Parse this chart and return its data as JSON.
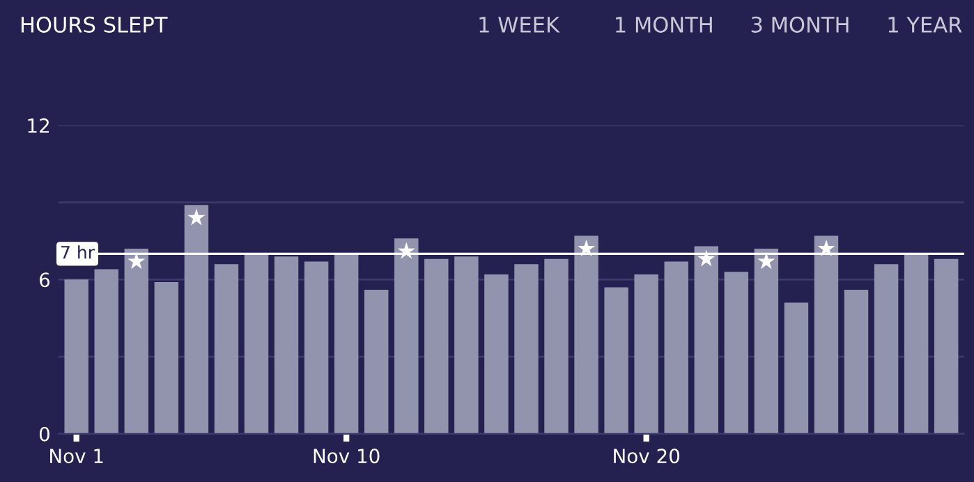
{
  "chart_data": {
    "type": "bar",
    "title": "HOURS SLEPT",
    "annotations": [
      "1 WEEK",
      "1 MONTH",
      "3 MONTH",
      "1 YEAR"
    ],
    "categories": [
      "Nov 1",
      null,
      null,
      null,
      null,
      null,
      null,
      null,
      null,
      "Nov 10",
      null,
      null,
      null,
      null,
      null,
      null,
      null,
      null,
      null,
      "Nov 20",
      null,
      null,
      null,
      null,
      null,
      null,
      null,
      null,
      null,
      null
    ],
    "series": [
      {
        "color": "#9294ae",
        "values": [
          6.0,
          6.4,
          7.2,
          5.9,
          8.9,
          6.6,
          7.0,
          6.9,
          6.7,
          7.0,
          5.6,
          7.6,
          6.8,
          6.9,
          6.2,
          6.6,
          6.8,
          7.7,
          5.7,
          6.2,
          6.7,
          7.3,
          6.3,
          7.2,
          5.1,
          7.7,
          5.6,
          6.6,
          7.0,
          6.8
        ]
      },
      {
        "type": "scatter",
        "color": "#ffffff",
        "marker": "star",
        "values": [
          null,
          null,
          6.7,
          null,
          8.4,
          null,
          null,
          null,
          null,
          null,
          null,
          7.1,
          null,
          null,
          null,
          null,
          null,
          7.2,
          null,
          null,
          null,
          6.8,
          null,
          6.7,
          null,
          7.2,
          null,
          null,
          null,
          null
        ]
      }
    ],
    "ylim": [
      0,
      12
    ],
    "yticks": [
      0,
      {
        "value": 3,
        "label": null
      },
      6,
      {
        "value": 9,
        "label": null
      },
      12
    ],
    "grid": "y",
    "ref_lines": [
      {
        "axis": "y",
        "value": 7,
        "label": "7 hr",
        "color": "#ffffff"
      }
    ]
  }
}
